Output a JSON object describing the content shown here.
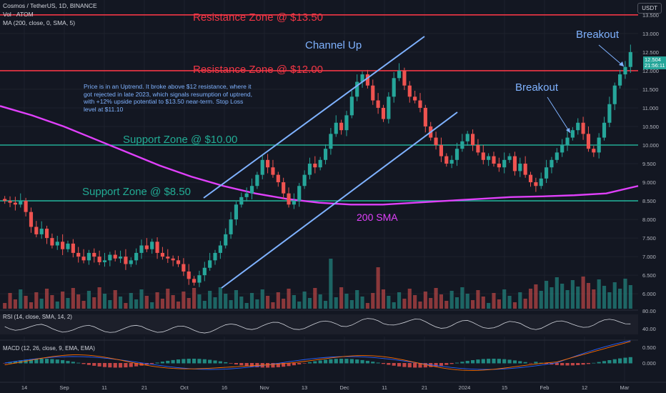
{
  "header": {
    "symbol_line": "Cosmos / TetherUS, 1D, BINANCE",
    "vol_line": "Vol · ATOM",
    "ma_line": "MA (200, close, 0, SMA, 5)",
    "currency_button": "USDT"
  },
  "annotations": {
    "resistance_1350": "Resistance Zone @ $13.50",
    "resistance_1200": "Resistance Zone @ $12.00",
    "support_1000": "Support Zone @ $10.00",
    "support_850": "Support Zone @ $8.50",
    "channel": "Channel Up",
    "breakout_1": "Breakout",
    "breakout_2": "Breakout",
    "sma_label": "200 SMA",
    "note": "Price is in an Uptrend. It broke above $12 resistance, where it got rejected in late 2023, which signals resumption of uptrend, with +12% upside potential to $13.50 near-term. Stop Loss level at $11.10"
  },
  "price_box": {
    "last": "12.504",
    "countdown": "21:56:11"
  },
  "rsi": {
    "label": "RSI (14, close, SMA, 14, 2)",
    "ticks": [
      "80.00",
      "40.00"
    ]
  },
  "macd": {
    "label": "MACD (12, 26, close, 9, EMA, EMA)",
    "ticks": [
      "0.500",
      "0.000"
    ]
  },
  "colors": {
    "up": "#26a69a",
    "down": "#ef5350",
    "resistance": "#f23645",
    "support": "#22ab94",
    "sma": "#e040fb",
    "channel": "#7fb2ff"
  },
  "chart_data": {
    "type": "candlestick",
    "symbol": "ATOM/USDT",
    "y_ticks": [
      "13.500",
      "13.000",
      "12.500",
      "12.000",
      "11.500",
      "11.000",
      "10.500",
      "10.000",
      "9.500",
      "9.000",
      "8.500",
      "8.000",
      "7.500",
      "7.000",
      "6.500",
      "6.000"
    ],
    "ylim": [
      5.6,
      13.9
    ],
    "x_ticks": [
      "14",
      "Sep",
      "11",
      "21",
      "Oct",
      "16",
      "Nov",
      "13",
      "Dec",
      "11",
      "21",
      "2024",
      "15",
      "Feb",
      "12",
      "Mar"
    ],
    "horizontal_levels": [
      {
        "value": 13.5,
        "type": "resistance"
      },
      {
        "value": 12.0,
        "type": "resistance"
      },
      {
        "value": 10.0,
        "type": "support"
      },
      {
        "value": 8.5,
        "type": "support"
      }
    ],
    "channel_lines": [
      {
        "from": [
          0,
          8.9
        ],
        "to": [
          1,
          13.2
        ]
      },
      {
        "from": [
          0,
          6.1
        ],
        "to": [
          1,
          11.1
        ]
      }
    ],
    "sma_200": [
      11.05,
      10.8,
      10.5,
      10.15,
      9.8,
      9.45,
      9.15,
      8.9,
      8.7,
      8.55,
      8.45,
      8.4,
      8.4,
      8.45,
      8.5,
      8.55,
      8.6,
      8.62,
      8.65,
      8.7,
      8.9
    ],
    "closes": [
      8.5,
      8.45,
      8.4,
      8.5,
      8.2,
      7.8,
      7.6,
      7.75,
      7.5,
      7.3,
      7.4,
      7.2,
      7.35,
      7.1,
      7.0,
      6.9,
      7.1,
      7.0,
      6.85,
      6.9,
      7.05,
      6.95,
      7.0,
      6.8,
      6.9,
      7.1,
      7.3,
      7.2,
      7.4,
      7.1,
      7.0,
      6.95,
      6.9,
      6.8,
      6.6,
      6.4,
      6.3,
      6.5,
      6.7,
      6.9,
      7.1,
      7.3,
      7.6,
      8.0,
      8.4,
      8.6,
      8.7,
      8.9,
      9.2,
      9.6,
      9.4,
      9.2,
      9.0,
      8.7,
      8.4,
      8.5,
      8.9,
      9.2,
      9.5,
      9.4,
      9.6,
      9.9,
      10.3,
      10.6,
      10.4,
      10.8,
      11.3,
      11.7,
      11.9,
      11.6,
      11.2,
      11.0,
      10.7,
      11.3,
      11.8,
      12.0,
      11.6,
      11.3,
      11.2,
      11.0,
      10.5,
      10.2,
      10.0,
      9.7,
      9.5,
      9.6,
      9.9,
      10.1,
      10.3,
      10.0,
      9.8,
      9.6,
      9.7,
      9.5,
      9.4,
      9.6,
      9.7,
      9.3,
      9.5,
      9.2,
      9.0,
      8.9,
      9.1,
      9.4,
      9.6,
      9.8,
      10.0,
      10.2,
      10.4,
      10.6,
      10.3,
      9.9,
      9.8,
      10.2,
      10.6,
      11.1,
      11.6,
      11.9,
      12.1,
      12.5
    ]
  }
}
